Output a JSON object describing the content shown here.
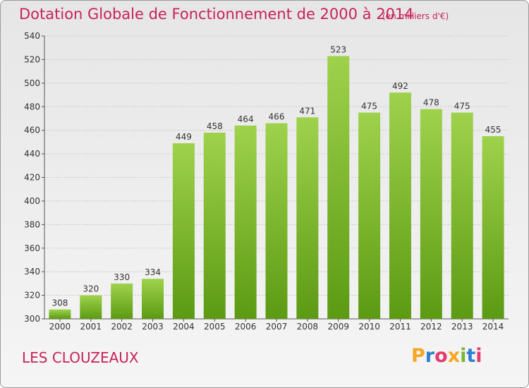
{
  "title": "Dotation Globale de Fonctionnement de 2000 à 2014",
  "unit_note": "(en milliers d'€)",
  "commune": "LES CLOUZEAUX",
  "logo": {
    "letters": [
      "P",
      "r",
      "o",
      "x",
      "i",
      "t",
      "i"
    ],
    "colors": [
      "#f5a623",
      "#2c7fd3",
      "#e23c6e",
      "#f5a623",
      "#7ab733",
      "#2c7fd3",
      "#e23c6e"
    ]
  },
  "colors": {
    "title": "#c8215a",
    "bar_top": "#9fd24c",
    "bar_bottom": "#5c9a13",
    "grid": "#c8c8c8"
  },
  "chart_data": {
    "type": "bar",
    "title": "Dotation Globale de Fonctionnement de 2000 à 2014",
    "subtitle": "(en milliers d'€)",
    "xlabel": "",
    "ylabel": "",
    "categories": [
      "2000",
      "2001",
      "2002",
      "2003",
      "2004",
      "2005",
      "2006",
      "2007",
      "2008",
      "2009",
      "2010",
      "2011",
      "2012",
      "2013",
      "2014"
    ],
    "values": [
      308,
      320,
      330,
      334,
      449,
      458,
      464,
      466,
      471,
      523,
      475,
      492,
      478,
      475,
      455
    ],
    "ylim": [
      300,
      540
    ],
    "yticks": [
      300,
      320,
      340,
      360,
      380,
      400,
      420,
      440,
      460,
      480,
      500,
      520,
      540
    ],
    "grid": true,
    "data_labels": true
  }
}
